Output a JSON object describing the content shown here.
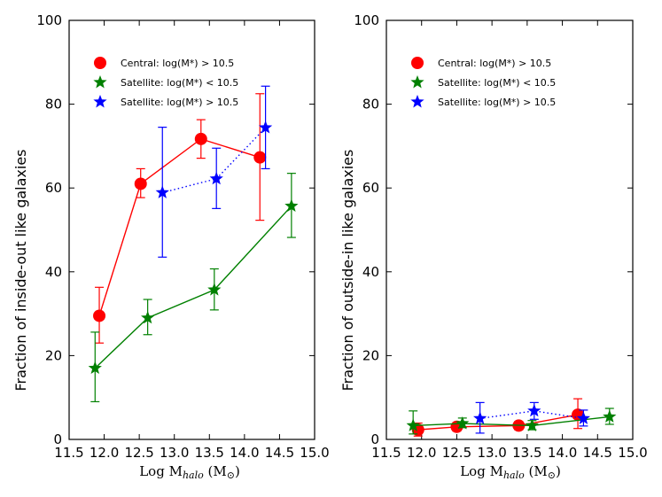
{
  "chart_data": [
    {
      "type": "line",
      "ylabel": "Fraction of inside-out like galaxies",
      "xlabel": {
        "prefix": "Log M",
        "sub": "halo",
        "suffix": " (M",
        "sun_sub": "⊙",
        "close": ")"
      },
      "xlim": [
        11.5,
        15.0
      ],
      "ylim": [
        0,
        100
      ],
      "xticks": [
        "11.5",
        "12.0",
        "12.5",
        "13.0",
        "13.5",
        "14.0",
        "14.5",
        "15.0"
      ],
      "yticks": [
        "0",
        "20",
        "40",
        "60",
        "80",
        "100"
      ],
      "legend_position": "top-left",
      "series": [
        {
          "name": "Central:  log(M*) > 10.5",
          "color": "#ff0000",
          "marker": "circle",
          "linestyle": "solid",
          "x": [
            11.93,
            12.52,
            13.38,
            14.22
          ],
          "y": [
            29.5,
            61.0,
            71.7,
            67.3
          ],
          "err_low": [
            6.5,
            3.3,
            4.6,
            15.0
          ],
          "err_high": [
            6.8,
            3.6,
            4.6,
            15.2
          ]
        },
        {
          "name": "Satellite:  log(M*) < 10.5",
          "color": "#008000",
          "marker": "star",
          "linestyle": "solid",
          "x": [
            11.87,
            12.62,
            13.57,
            14.67
          ],
          "y": [
            17.0,
            29.0,
            35.7,
            55.7
          ],
          "err_low": [
            8.0,
            4.0,
            4.8,
            7.5
          ],
          "err_high": [
            8.6,
            4.4,
            5.0,
            7.8
          ]
        },
        {
          "name": "Satellite:  log(M*) > 10.5",
          "color": "#0000ff",
          "marker": "star",
          "linestyle": "dotted",
          "x": [
            12.83,
            13.6,
            14.3
          ],
          "y": [
            58.9,
            62.2,
            74.4
          ],
          "err_low": [
            15.4,
            7.1,
            9.8
          ],
          "err_high": [
            15.6,
            7.3,
            9.9
          ]
        }
      ]
    },
    {
      "type": "line",
      "ylabel": "Fraction of outside-in like galaxies",
      "xlabel": {
        "prefix": "Log M",
        "sub": "halo",
        "suffix": " (M",
        "sun_sub": "⊙",
        "close": ")"
      },
      "xlim": [
        11.5,
        15.0
      ],
      "ylim": [
        0,
        100
      ],
      "xticks": [
        "11.5",
        "12.0",
        "12.5",
        "13.0",
        "13.5",
        "14.0",
        "14.5",
        "15.0"
      ],
      "yticks": [
        "0",
        "20",
        "40",
        "60",
        "80",
        "100"
      ],
      "legend_position": "top-left",
      "series": [
        {
          "name": "Central:  log(M*) > 10.5",
          "color": "#ff0000",
          "marker": "circle",
          "linestyle": "solid",
          "x": [
            11.95,
            12.5,
            13.38,
            14.22
          ],
          "y": [
            2.3,
            3.0,
            3.3,
            5.9
          ],
          "err_low": [
            1.5,
            1.0,
            1.0,
            3.3
          ],
          "err_high": [
            1.6,
            1.0,
            1.0,
            3.8
          ]
        },
        {
          "name": "Satellite:  log(M*) < 10.5",
          "color": "#008000",
          "marker": "star",
          "linestyle": "solid",
          "x": [
            11.88,
            12.58,
            13.57,
            14.67
          ],
          "y": [
            3.3,
            3.8,
            3.3,
            5.4
          ],
          "err_low": [
            2.0,
            1.0,
            1.0,
            1.8
          ],
          "err_high": [
            3.5,
            1.3,
            1.2,
            2.0
          ]
        },
        {
          "name": "Satellite:  log(M*) > 10.5",
          "color": "#0000ff",
          "marker": "star",
          "linestyle": "dotted",
          "x": [
            12.83,
            13.6,
            14.3
          ],
          "y": [
            5.0,
            6.8,
            5.0
          ],
          "err_low": [
            3.5,
            2.0,
            1.8
          ],
          "err_high": [
            3.8,
            2.0,
            2.0
          ]
        }
      ]
    }
  ]
}
